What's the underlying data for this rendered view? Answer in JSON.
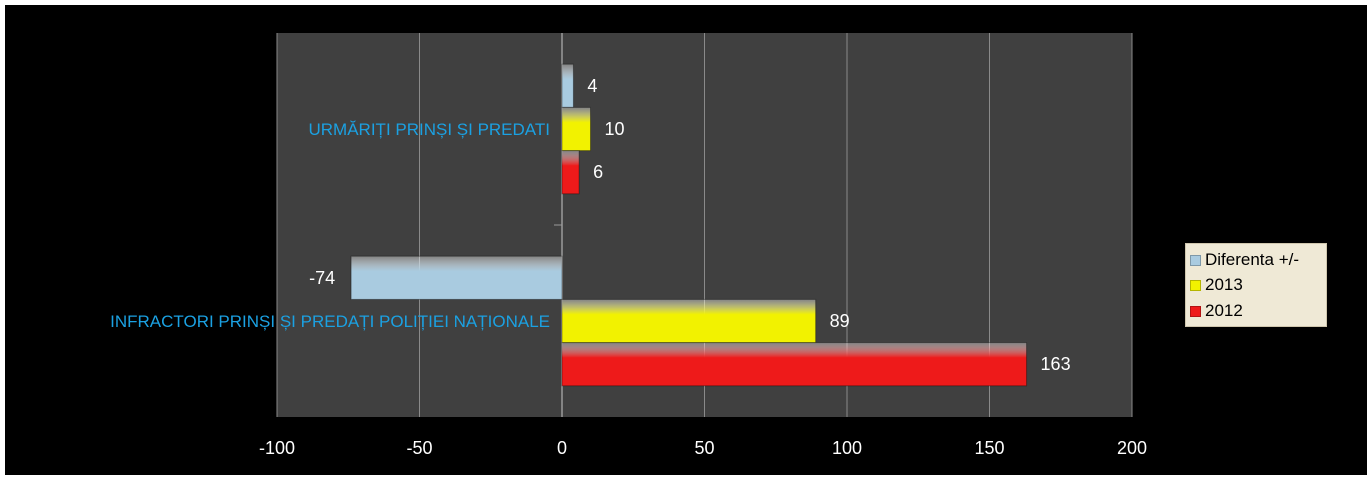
{
  "chart_data": {
    "type": "bar",
    "orientation": "horizontal",
    "categories": [
      "URMĂRIȚI PRINȘI ȘI PREDATI",
      "INFRACTORI PRINȘI ȘI PREDAȚI POLIȚIEI NAȚIONALE"
    ],
    "series": [
      {
        "name": "Diferenta +/-",
        "values": [
          4,
          -74
        ],
        "color": "#a9cbe0"
      },
      {
        "name": "2013",
        "values": [
          10,
          89
        ],
        "color": "#f2f200"
      },
      {
        "name": "2012",
        "values": [
          6,
          163
        ],
        "color": "#ee1a1a"
      }
    ],
    "xlim": [
      -100,
      200
    ],
    "x_ticks": [
      -100,
      -50,
      0,
      50,
      100,
      150,
      200
    ],
    "x_tick_labels": [
      "-100",
      "-50",
      "0",
      "50",
      "100",
      "150",
      "200"
    ],
    "category_label_color": "#1ba1e2",
    "grid": true,
    "legend_position": "right",
    "plot_background": "#404040",
    "background": "#000000"
  }
}
